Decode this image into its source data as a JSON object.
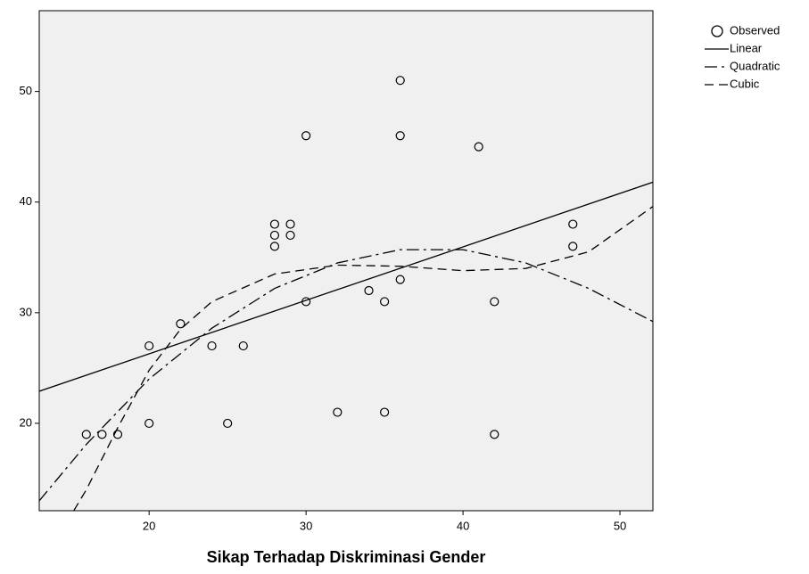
{
  "chart_data": {
    "type": "scatter",
    "x_label": "Sikap Terhadap Diskriminasi Gender",
    "xlim": [
      13,
      52.1
    ],
    "ylim": [
      12.1,
      57.3
    ],
    "xticks": [
      20,
      30,
      40,
      50
    ],
    "yticks": [
      20,
      30,
      40,
      50
    ],
    "legend": "top-right",
    "series": [
      {
        "name": "Observed",
        "kind": "scatter",
        "color": "#000000",
        "x": [
          16,
          17,
          18,
          20,
          20,
          22,
          24,
          25,
          26,
          28,
          28,
          28,
          29,
          29,
          30,
          30,
          32,
          34,
          35,
          35,
          36,
          36,
          36,
          41,
          42,
          42,
          47,
          47
        ],
        "values": [
          19,
          19,
          19,
          27,
          20,
          29,
          27,
          20,
          27,
          38,
          37,
          36,
          38,
          37,
          46,
          31,
          21,
          32,
          31,
          21,
          51,
          46,
          33,
          45,
          31,
          19,
          38,
          36
        ]
      },
      {
        "name": "Linear",
        "kind": "line",
        "dash": "solid",
        "color": "#000000",
        "x": [
          13,
          52.1
        ],
        "values": [
          22.9,
          41.8
        ]
      },
      {
        "name": "Quadratic",
        "kind": "line",
        "dash": "dashdot",
        "color": "#000000",
        "x": [
          13,
          16,
          20,
          24,
          28,
          32,
          36,
          40,
          44,
          48,
          52.1
        ],
        "values": [
          13.0,
          18.1,
          24.0,
          28.6,
          32.2,
          34.5,
          35.7,
          35.7,
          34.5,
          32.2,
          29.2
        ]
      },
      {
        "name": "Cubic",
        "kind": "line",
        "dash": "dashed",
        "color": "#000000",
        "x": [
          15.2,
          16,
          18,
          20,
          22,
          24,
          28,
          32,
          36,
          40,
          44,
          48,
          52.1
        ],
        "values": [
          12.1,
          14,
          19.6,
          24.8,
          28.5,
          31,
          33.5,
          34.3,
          34.2,
          33.8,
          34,
          35.5,
          39.6
        ]
      }
    ]
  }
}
